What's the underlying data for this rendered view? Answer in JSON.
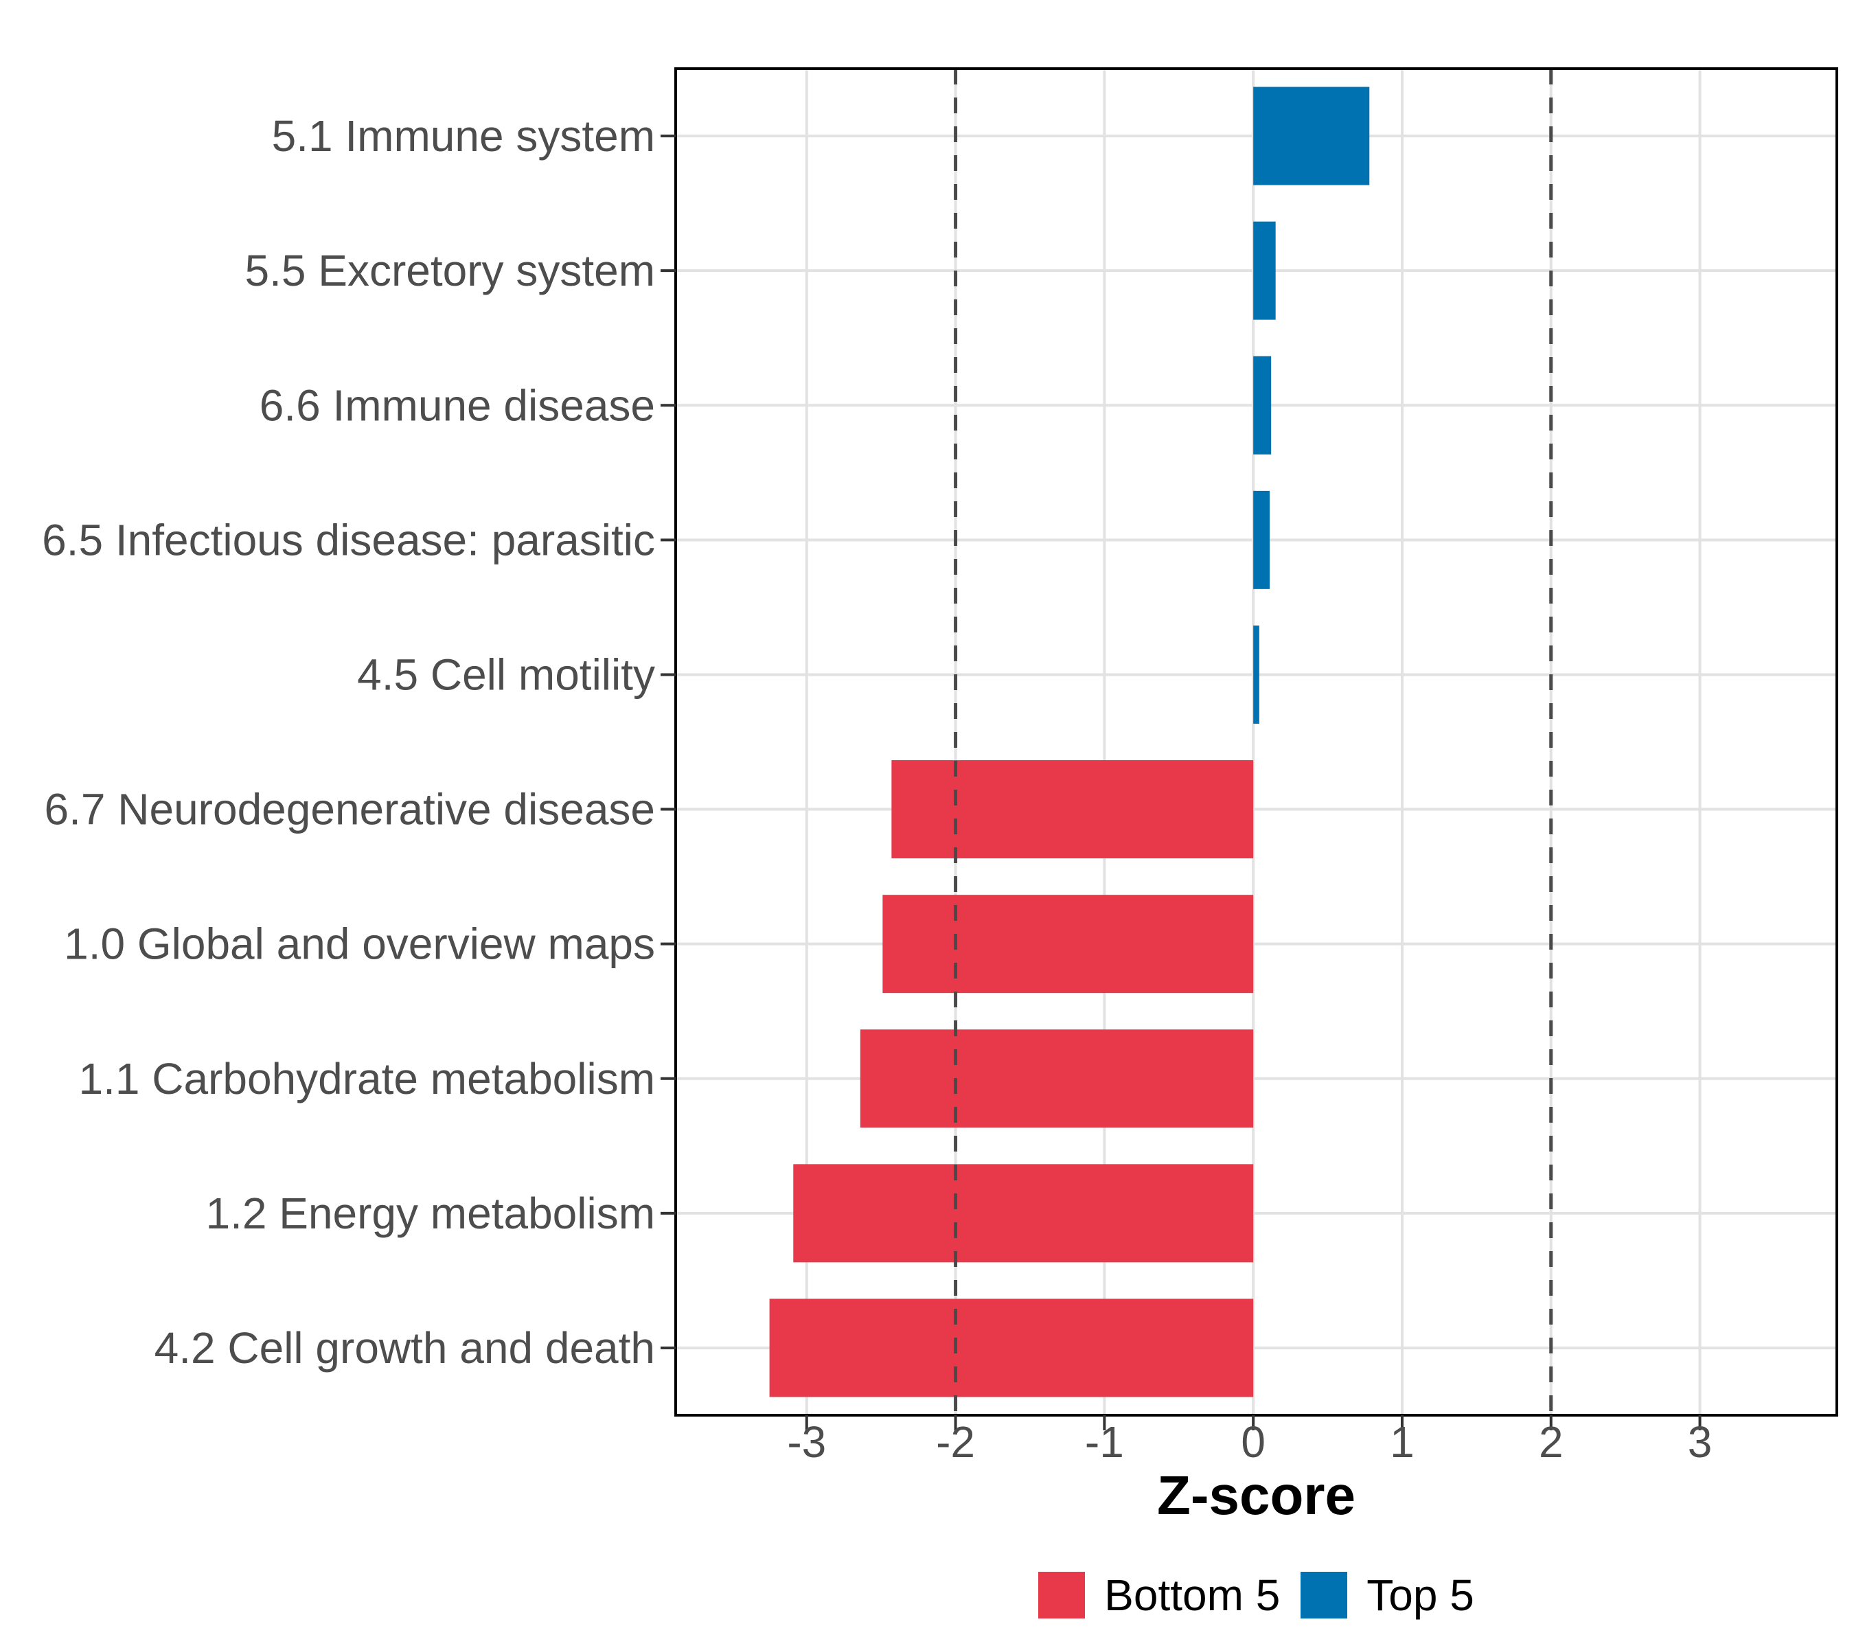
{
  "chart_data": {
    "type": "bar",
    "orientation": "horizontal",
    "title": "",
    "xlabel": "Z-score",
    "ylabel": "",
    "categories": [
      "5.1 Immune system",
      "5.5 Excretory system",
      "6.6 Immune disease",
      "6.5 Infectious disease: parasitic",
      "4.5 Cell motility",
      "6.7 Neurodegenerative disease",
      "1.0 Global and overview maps",
      "1.1 Carbohydrate metabolism",
      "1.2 Energy metabolism",
      "4.2 Cell growth and death"
    ],
    "values": [
      0.78,
      0.15,
      0.12,
      0.11,
      0.04,
      -2.43,
      -2.49,
      -2.64,
      -3.09,
      -3.25
    ],
    "groups": [
      "Top 5",
      "Top 5",
      "Top 5",
      "Top 5",
      "Top 5",
      "Bottom 5",
      "Bottom 5",
      "Bottom 5",
      "Bottom 5",
      "Bottom 5"
    ],
    "xlim": [
      -3.88,
      3.92
    ],
    "xticks": [
      -3,
      -2,
      -1,
      0,
      1,
      2,
      3
    ],
    "xtick_labels": [
      "-3",
      "-2",
      "-1",
      "0",
      "1",
      "2",
      "3"
    ],
    "reference_lines": {
      "values": [
        -2,
        2
      ],
      "style": "dashed",
      "color": "#4a4a4a"
    },
    "grid": true,
    "colors": {
      "Bottom 5": "#E8394A",
      "Top 5": "#0072B2"
    },
    "legend": {
      "position": "bottom",
      "entries": [
        {
          "label": "Bottom 5",
          "group": "Bottom 5"
        },
        {
          "label": "Top 5",
          "group": "Top 5"
        }
      ]
    },
    "style_colors": {
      "axis_text": "#4d4d4d",
      "axis_ticks": "#333333",
      "grid_line": "#e2e2e2",
      "panel_border": "#000000",
      "background": "#ffffff"
    }
  }
}
